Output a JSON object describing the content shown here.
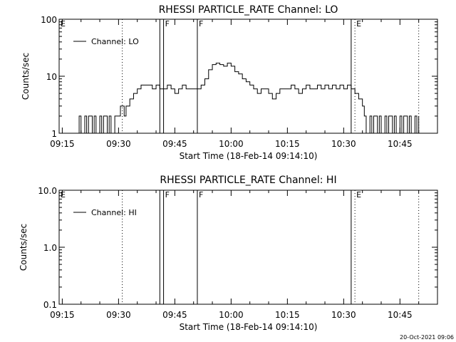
{
  "footer": {
    "timestamp": "20-Oct-2021 09:06"
  },
  "chart_data": [
    {
      "type": "line",
      "title": "RHESSI PARTICLE_RATE Channel: LO",
      "xlabel": "Start Time (18-Feb-14 09:14:10)",
      "ylabel": "Counts/sec",
      "yscale": "log",
      "xlim": [
        "09:14:10",
        "10:55:00"
      ],
      "ylim": [
        1,
        100
      ],
      "xticks": [
        "09:15",
        "09:30",
        "09:45",
        "10:00",
        "10:15",
        "10:30",
        "10:45"
      ],
      "yticks": [
        "1",
        "10",
        "100"
      ],
      "legend": {
        "placement": "top-left",
        "entries": [
          "Channel: LO"
        ]
      },
      "grid": false,
      "markers": [
        {
          "time": "09:14:10",
          "label": "E",
          "style": "solid"
        },
        {
          "time": "09:31:00",
          "label": "",
          "style": "dotted"
        },
        {
          "time": "09:41:00",
          "label": "",
          "style": "solid"
        },
        {
          "time": "09:42:00",
          "label": "F",
          "style": "solid"
        },
        {
          "time": "09:51:00",
          "label": "F",
          "style": "solid"
        },
        {
          "time": "10:32:00",
          "label": "",
          "style": "solid"
        },
        {
          "time": "10:33:00",
          "label": "E",
          "style": "dotted"
        },
        {
          "time": "10:50:00",
          "label": "",
          "style": "dotted"
        }
      ],
      "series": [
        {
          "name": "Channel: LO",
          "x": [
            "09:19:00",
            "09:19:30",
            "09:20:00",
            "09:21:00",
            "09:21:30",
            "09:22:00",
            "09:23:00",
            "09:23:30",
            "09:24:00",
            "09:25:00",
            "09:25:30",
            "09:26:00",
            "09:27:00",
            "09:27:30",
            "09:28:00",
            "09:29:00",
            "09:29:30",
            "09:30:00",
            "09:30:30",
            "09:31:00",
            "09:31:30",
            "09:32:00",
            "09:32:30",
            "09:33:00",
            "09:34:00",
            "09:35:00",
            "09:36:00",
            "09:37:00",
            "09:38:00",
            "09:39:00",
            "09:40:00",
            "09:41:00",
            "09:42:00",
            "09:43:00",
            "09:44:00",
            "09:45:00",
            "09:46:00",
            "09:47:00",
            "09:48:00",
            "09:49:00",
            "09:50:00",
            "09:51:00",
            "09:52:00",
            "09:53:00",
            "09:54:00",
            "09:55:00",
            "09:56:00",
            "09:57:00",
            "09:58:00",
            "09:59:00",
            "10:00:00",
            "10:01:00",
            "10:02:00",
            "10:03:00",
            "10:04:00",
            "10:05:00",
            "10:06:00",
            "10:07:00",
            "10:08:00",
            "10:09:00",
            "10:10:00",
            "10:11:00",
            "10:12:00",
            "10:13:00",
            "10:14:00",
            "10:15:00",
            "10:16:00",
            "10:17:00",
            "10:18:00",
            "10:19:00",
            "10:20:00",
            "10:21:00",
            "10:22:00",
            "10:23:00",
            "10:24:00",
            "10:25:00",
            "10:26:00",
            "10:27:00",
            "10:28:00",
            "10:29:00",
            "10:30:00",
            "10:31:00",
            "10:32:00",
            "10:33:00",
            "10:34:00",
            "10:35:00",
            "10:35:30",
            "10:36:00",
            "10:37:00",
            "10:37:30",
            "10:38:00",
            "10:39:00",
            "10:39:30",
            "10:40:00",
            "10:41:00",
            "10:41:30",
            "10:42:00",
            "10:43:00",
            "10:43:30",
            "10:44:00",
            "10:45:00",
            "10:45:30",
            "10:46:00",
            "10:47:00",
            "10:47:30",
            "10:48:00",
            "10:49:00",
            "10:49:30",
            "10:50:00"
          ],
          "y": [
            1,
            2,
            1,
            2,
            1,
            2,
            1,
            2,
            1,
            2,
            1,
            2,
            1,
            2,
            1,
            2,
            2,
            2,
            3,
            3,
            2,
            3,
            3,
            4,
            5,
            6,
            7,
            7,
            7,
            6,
            7,
            6,
            6,
            7,
            6,
            5,
            6,
            7,
            6,
            6,
            6,
            6,
            7,
            9,
            13,
            16,
            17,
            16,
            15,
            17,
            15,
            12,
            11,
            9,
            8,
            7,
            6,
            5,
            6,
            6,
            5,
            4,
            5,
            6,
            6,
            6,
            7,
            6,
            5,
            6,
            7,
            6,
            6,
            7,
            6,
            7,
            6,
            7,
            6,
            7,
            6,
            7,
            6,
            5,
            4,
            3,
            2,
            1,
            2,
            1,
            2,
            1,
            2,
            1,
            2,
            1,
            2,
            1,
            2,
            1,
            2,
            1,
            2,
            1,
            2,
            1,
            2,
            1,
            2
          ]
        }
      ]
    },
    {
      "type": "line",
      "title": "RHESSI PARTICLE_RATE Channel: HI",
      "xlabel": "Start Time (18-Feb-14 09:14:10)",
      "ylabel": "Counts/sec",
      "yscale": "log",
      "xlim": [
        "09:14:10",
        "10:55:00"
      ],
      "ylim": [
        0.1,
        10
      ],
      "xticks": [
        "09:15",
        "09:30",
        "09:45",
        "10:00",
        "10:15",
        "10:30",
        "10:45"
      ],
      "yticks": [
        "0.1",
        "1.0",
        "10.0"
      ],
      "legend": {
        "placement": "top-left",
        "entries": [
          "Channel: HI"
        ]
      },
      "grid": false,
      "markers": [
        {
          "time": "09:14:10",
          "label": "E",
          "style": "solid"
        },
        {
          "time": "09:31:00",
          "label": "",
          "style": "dotted"
        },
        {
          "time": "09:41:00",
          "label": "",
          "style": "solid"
        },
        {
          "time": "09:42:00",
          "label": "F",
          "style": "solid"
        },
        {
          "time": "09:51:00",
          "label": "F",
          "style": "solid"
        },
        {
          "time": "10:32:00",
          "label": "",
          "style": "solid"
        },
        {
          "time": "10:33:00",
          "label": "E",
          "style": "dotted"
        },
        {
          "time": "10:50:00",
          "label": "",
          "style": "dotted"
        }
      ],
      "series": [
        {
          "name": "Channel: HI",
          "x": [],
          "y": []
        }
      ]
    }
  ]
}
